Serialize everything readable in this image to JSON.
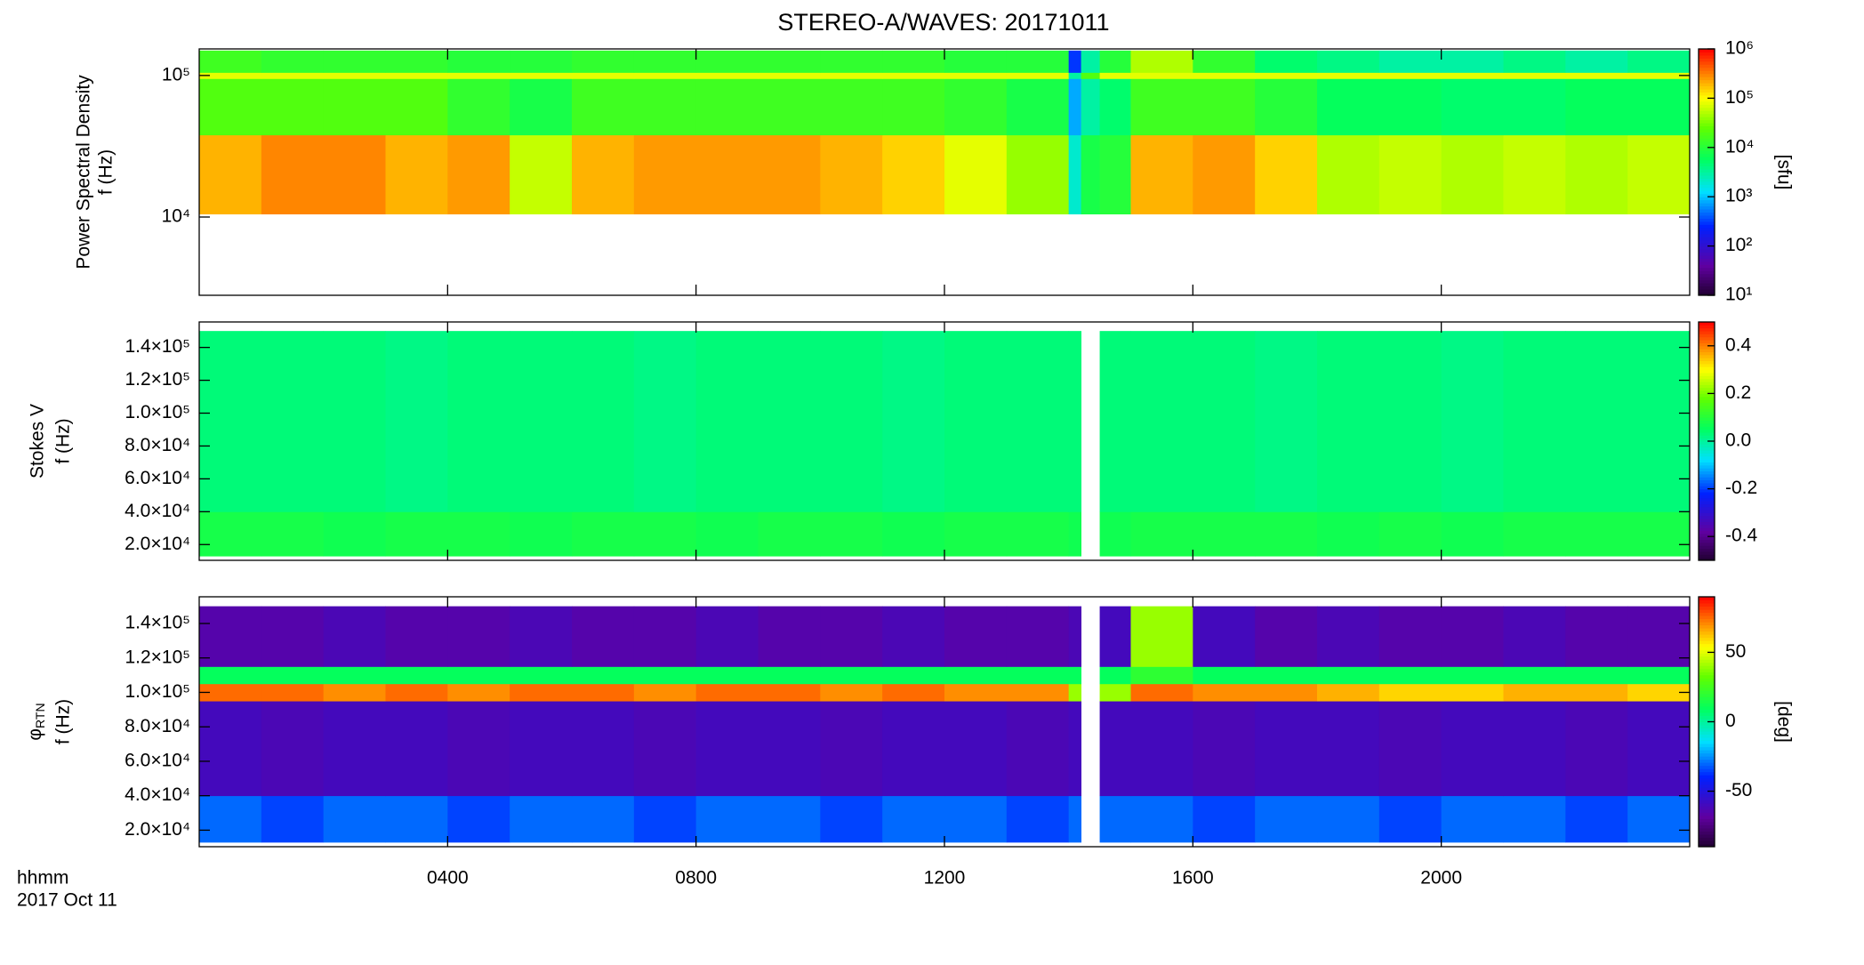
{
  "title": "STEREO-A/WAVES: 20171011",
  "x_label": [
    "hhmm",
    "2017 Oct 11"
  ],
  "xlim": [
    0,
    24
  ],
  "xticks": [
    {
      "value": 4,
      "label": "0400"
    },
    {
      "value": 8,
      "label": "0800"
    },
    {
      "value": 12,
      "label": "1200"
    },
    {
      "value": 16,
      "label": "1600"
    },
    {
      "value": 20,
      "label": "2000"
    }
  ],
  "x": [
    0,
    1,
    2,
    3,
    4,
    5,
    6,
    7,
    8,
    9,
    10,
    11,
    12,
    13,
    14,
    14.2,
    14.5,
    15,
    16,
    17,
    18,
    19,
    20,
    21,
    22,
    23,
    24
  ],
  "chart_data": [
    {
      "type": "heatmap",
      "ylabel": [
        "Power Spectral Density",
        "f (Hz)"
      ],
      "ylog": true,
      "ylim": [
        2800,
        154000
      ],
      "yticks": [
        {
          "value": 10000,
          "label": "10⁴"
        },
        {
          "value": 100000,
          "label": "10⁵"
        }
      ],
      "y": [
        10500,
        38000,
        95000,
        105000,
        150000
      ],
      "z": [
        [
          200000,
          300000,
          300000,
          200000,
          250000,
          60000,
          200000,
          250000,
          250000,
          250000,
          200000,
          150000,
          80000,
          40000,
          2000,
          8000,
          10000,
          200000,
          250000,
          150000,
          50000,
          60000,
          50000,
          60000,
          50000,
          60000
        ],
        [
          20000,
          20000,
          20000,
          20000,
          12000,
          8000,
          15000,
          15000,
          15000,
          15000,
          15000,
          15000,
          12000,
          8000,
          800,
          3000,
          5000,
          15000,
          15000,
          10000,
          6000,
          6000,
          5000,
          5000,
          6000,
          6000
        ],
        [
          80000,
          80000,
          80000,
          80000,
          80000,
          80000,
          80000,
          80000,
          80000,
          80000,
          80000,
          80000,
          80000,
          80000,
          3000,
          20000,
          80000,
          80000,
          80000,
          80000,
          80000,
          80000,
          80000,
          80000,
          80000,
          80000
        ],
        [
          15000,
          12000,
          12000,
          12000,
          10000,
          10000,
          12000,
          12000,
          12000,
          12000,
          12000,
          12000,
          10000,
          10000,
          300,
          3000,
          10000,
          50000,
          12000,
          5000,
          4000,
          3000,
          3000,
          4000,
          3000,
          4000
        ]
      ],
      "clog": true,
      "clim": [
        10,
        1000000
      ],
      "cticks": [
        {
          "value": 10,
          "label": "10¹"
        },
        {
          "value": 100,
          "label": "10²"
        },
        {
          "value": 1000,
          "label": "10³"
        },
        {
          "value": 10000,
          "label": "10⁴"
        },
        {
          "value": 100000,
          "label": "10⁵"
        },
        {
          "value": 1000000,
          "label": "10⁶"
        }
      ],
      "clabel": "[sfu]"
    },
    {
      "type": "heatmap",
      "ylabel": [
        "Stokes V",
        "f (Hz)"
      ],
      "ylog": false,
      "ylim": [
        10400,
        155500
      ],
      "yticks": [
        {
          "value": 20000,
          "label": "2.0×10⁴"
        },
        {
          "value": 40000,
          "label": "4.0×10⁴"
        },
        {
          "value": 60000,
          "label": "6.0×10⁴"
        },
        {
          "value": 80000,
          "label": "8.0×10⁴"
        },
        {
          "value": 100000,
          "label": "1.0×10⁵"
        },
        {
          "value": 120000,
          "label": "1.2×10⁵"
        },
        {
          "value": 140000,
          "label": "1.4×10⁵"
        }
      ],
      "y": [
        13000,
        40000,
        150000
      ],
      "z": [
        [
          0.08,
          0.08,
          0.07,
          0.08,
          0.08,
          0.07,
          0.08,
          0.08,
          0.07,
          0.08,
          0.08,
          0.07,
          0.08,
          0.08,
          0.07,
          null,
          0.07,
          0.08,
          0.08,
          0.08,
          0.07,
          0.08,
          0.07,
          0.08,
          0.08,
          0.08
        ],
        [
          0.03,
          0.03,
          0.03,
          0.02,
          0.03,
          0.03,
          0.03,
          0.02,
          0.03,
          0.03,
          0.03,
          0.02,
          0.03,
          0.03,
          0.03,
          null,
          0.03,
          0.03,
          0.03,
          0.02,
          0.03,
          0.03,
          0.02,
          0.03,
          0.03,
          0.03
        ]
      ],
      "clog": false,
      "clim": [
        -0.5,
        0.5
      ],
      "cticks": [
        -0.4,
        -0.2,
        {
          "value": 0,
          "label": "0.0"
        },
        0.2,
        0.4
      ]
    },
    {
      "type": "heatmap",
      "ylabel": [
        {
          "symbol": "φ",
          "subscript": "RTN"
        },
        "f (Hz)"
      ],
      "ylog": false,
      "ylim": [
        10400,
        155500
      ],
      "yticks": [
        {
          "value": 20000,
          "label": "2.0×10⁴"
        },
        {
          "value": 40000,
          "label": "4.0×10⁴"
        },
        {
          "value": 60000,
          "label": "6.0×10⁴"
        },
        {
          "value": 80000,
          "label": "8.0×10⁴"
        },
        {
          "value": 100000,
          "label": "1.0×10⁵"
        },
        {
          "value": 120000,
          "label": "1.2×10⁵"
        },
        {
          "value": 140000,
          "label": "1.4×10⁵"
        }
      ],
      "y": [
        13000,
        40000,
        95000,
        105000,
        115000,
        150000
      ],
      "z": [
        [
          -30,
          -35,
          -30,
          -30,
          -35,
          -30,
          -30,
          -35,
          -30,
          -30,
          -35,
          -30,
          -30,
          -35,
          -30,
          null,
          -30,
          -30,
          -35,
          -30,
          -30,
          -35,
          -30,
          -30,
          -35,
          -30
        ],
        [
          -60,
          -62,
          -60,
          -60,
          -62,
          -60,
          -60,
          -62,
          -60,
          -60,
          -62,
          -60,
          -60,
          -62,
          -60,
          null,
          -60,
          -60,
          -62,
          -60,
          -60,
          -62,
          -60,
          -60,
          -62,
          -60
        ],
        [
          75,
          75,
          70,
          75,
          70,
          75,
          75,
          70,
          75,
          75,
          70,
          75,
          70,
          70,
          40,
          null,
          40,
          75,
          70,
          70,
          65,
          60,
          60,
          65,
          65,
          60
        ],
        [
          10,
          10,
          10,
          10,
          10,
          10,
          10,
          10,
          10,
          10,
          10,
          10,
          10,
          10,
          10,
          null,
          10,
          20,
          10,
          10,
          10,
          10,
          10,
          10,
          10,
          10
        ],
        [
          -65,
          -65,
          -62,
          -65,
          -65,
          -62,
          -65,
          -65,
          -62,
          -65,
          -65,
          -62,
          -65,
          -65,
          -62,
          null,
          -60,
          40,
          -60,
          -65,
          -62,
          -65,
          -65,
          -62,
          -65,
          -65
        ]
      ],
      "clog": false,
      "clim": [
        -90,
        90
      ],
      "cticks": [
        -50,
        0,
        50
      ],
      "clabel": "[deg]"
    }
  ]
}
